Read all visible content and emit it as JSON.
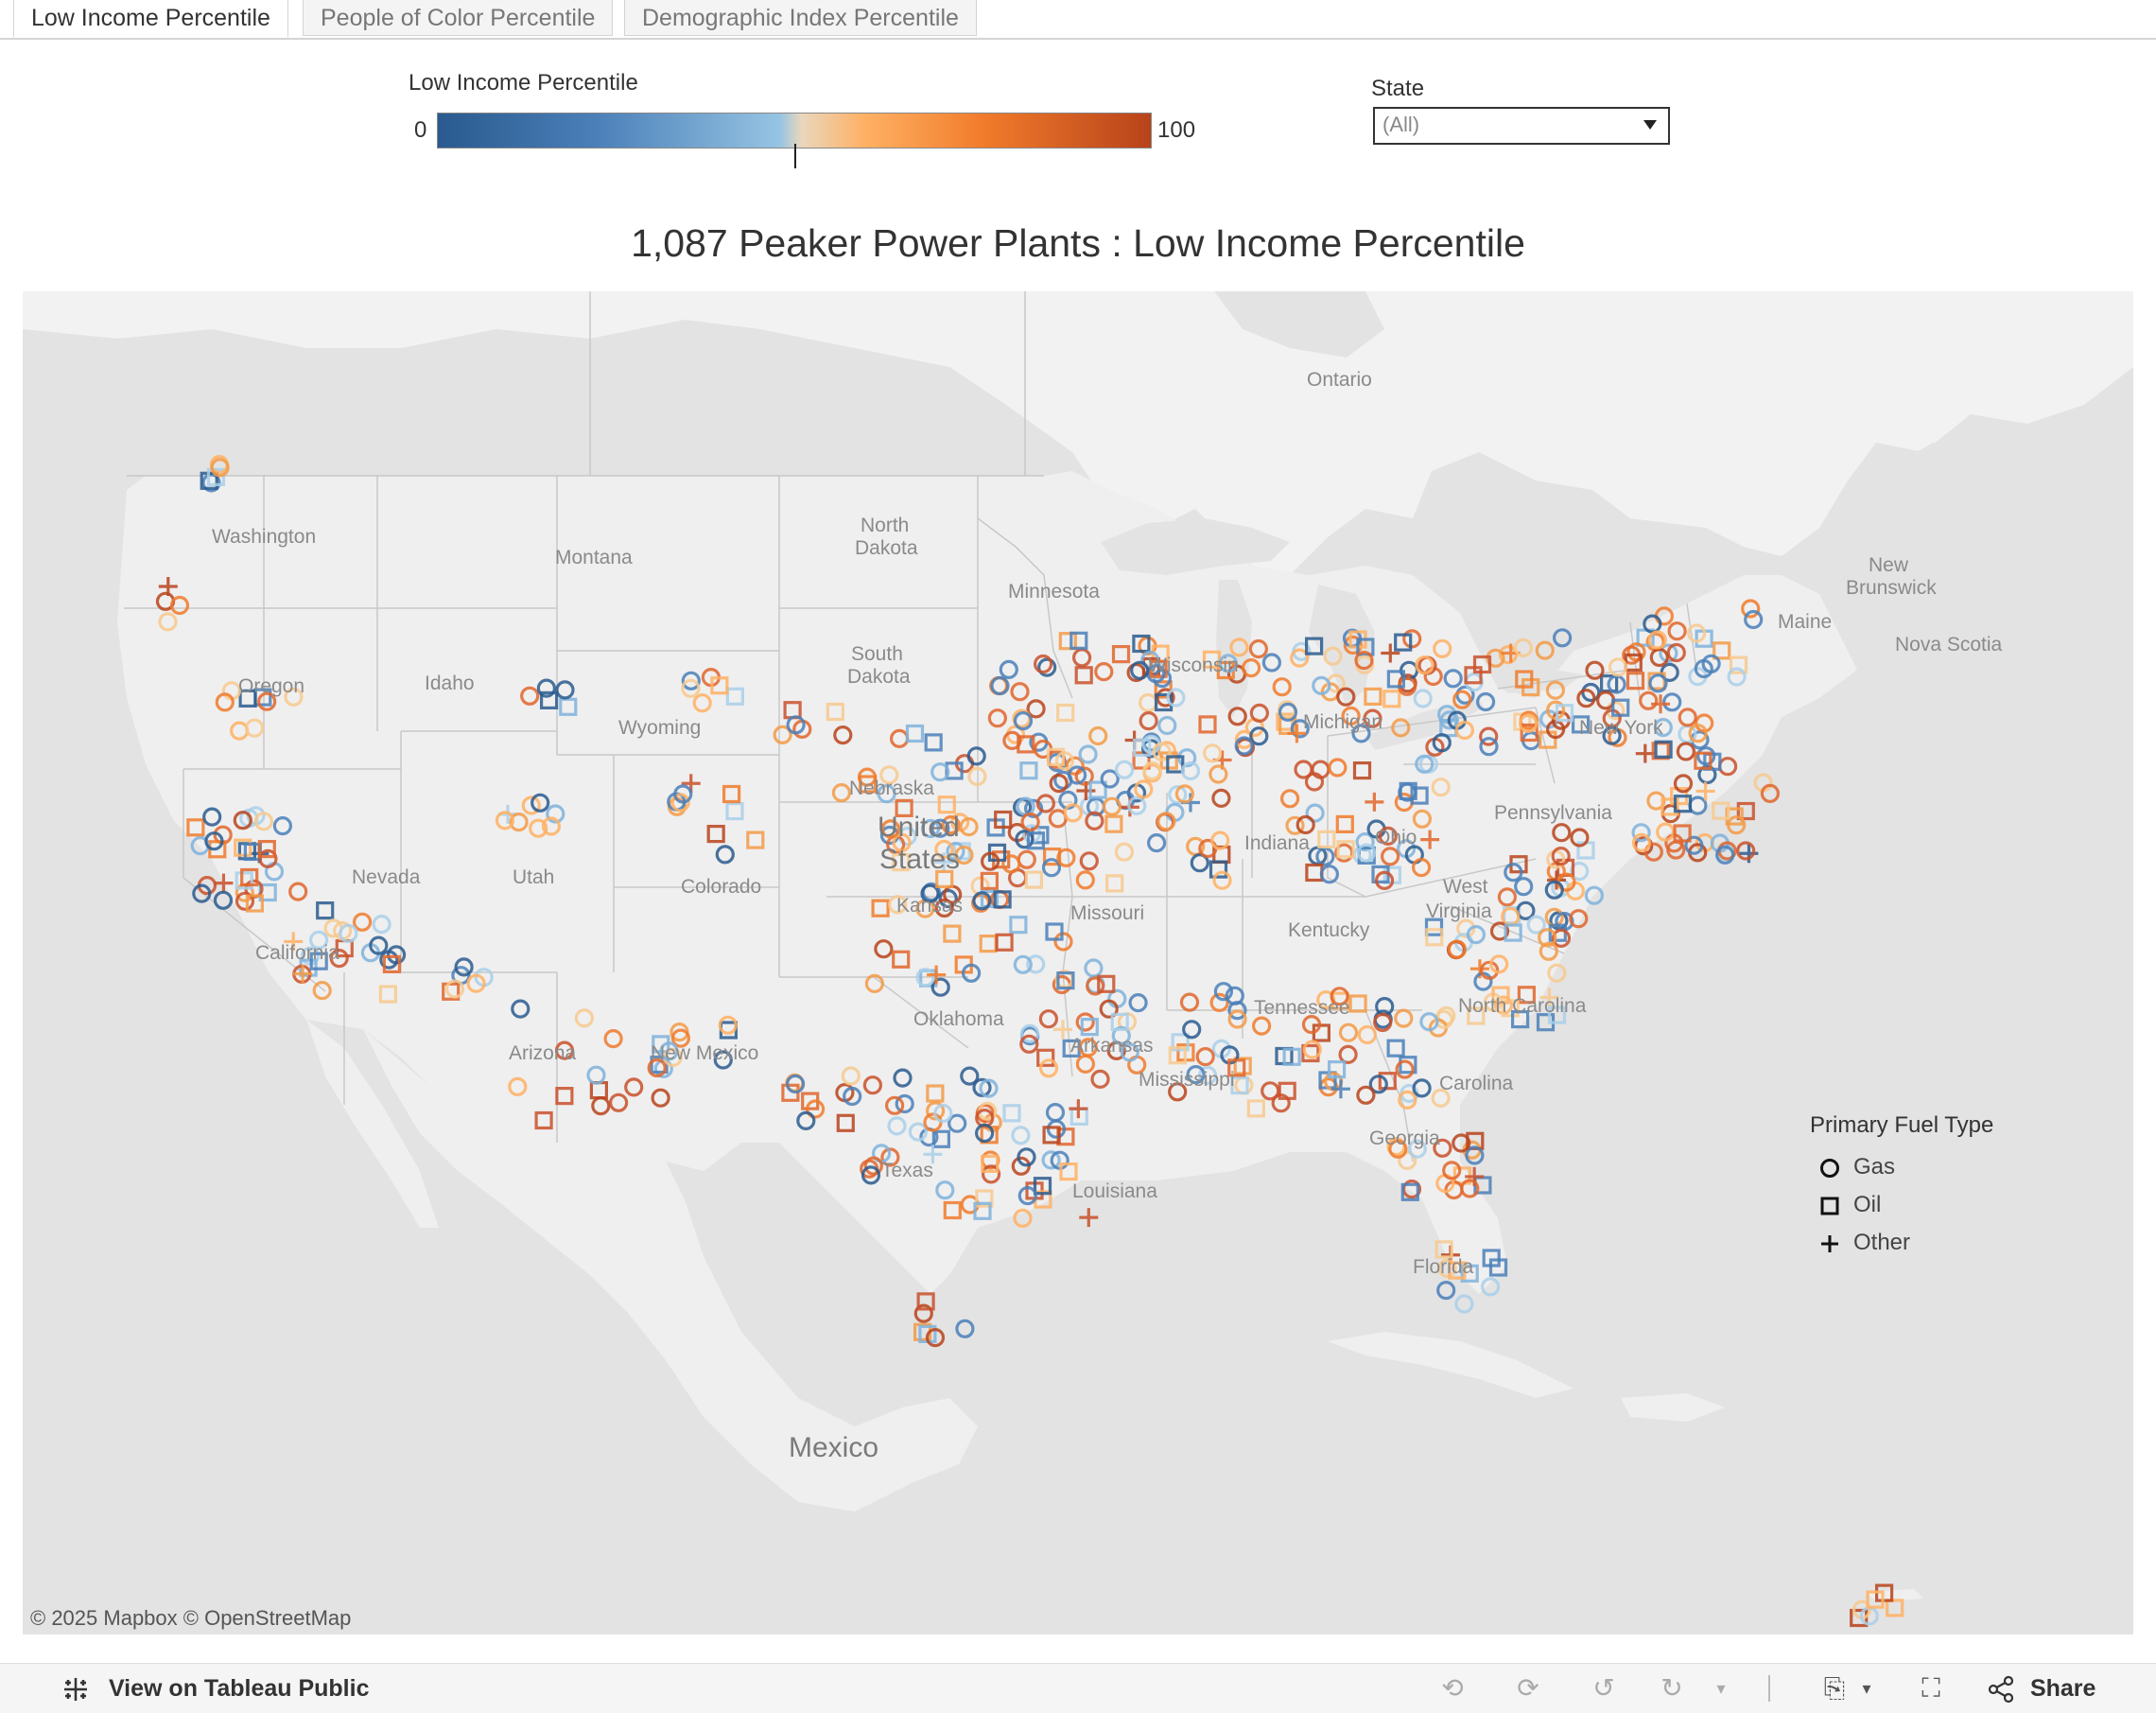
{
  "tabs": [
    {
      "label": "Low Income Percentile",
      "active": true
    },
    {
      "label": "People of Color Percentile",
      "active": false
    },
    {
      "label": "Demographic Index Percentile",
      "active": false
    }
  ],
  "color_legend": {
    "title": "Low Income Percentile",
    "min": "0",
    "max": "100",
    "colors": [
      "#2a5a8e",
      "#96c4e3",
      "#ffb063",
      "#b8431b"
    ]
  },
  "state_filter": {
    "label": "State",
    "value": "(All)"
  },
  "map": {
    "title": "1,087 Peaker Power Plants : Low Income Percentile",
    "labels": {
      "ontario": "Ontario",
      "washington": "Washington",
      "montana": "Montana",
      "north_dakota_1": "North",
      "north_dakota_2": "Dakota",
      "minnesota": "Minnesota",
      "new_brunswick_1": "New",
      "new_brunswick_2": "Brunswick",
      "maine": "Maine",
      "nova_scotia": "Nova Scotia",
      "oregon": "Oregon",
      "idaho": "Idaho",
      "south_dakota_1": "South",
      "south_dakota_2": "Dakota",
      "wisconsin": "Wisconsin",
      "michigan": "Michigan",
      "new_york": "New York",
      "wyoming": "Wyoming",
      "nebraska": "Nebraska",
      "pennsylvania": "Pennsylvania",
      "ohio": "Ohio",
      "nevada": "Nevada",
      "utah": "Utah",
      "colorado": "Colorado",
      "united_1": "United",
      "united_2": "States",
      "indiana": "Indiana",
      "west_virginia_1": "West",
      "west_virginia_2": "Virginia",
      "california": "California",
      "missouri": "Missouri",
      "kentucky": "Kentucky",
      "kansas": "Kansas",
      "tennessee": "Tennessee",
      "north_carolina": "North Carolina",
      "arizona": "Arizona",
      "new_mexico": "New Mexico",
      "oklahoma": "Oklahoma",
      "arkansas": "Arkansas",
      "mississippi": "Mississippi",
      "south_carolina": "Carolina",
      "georgia": "Georgia",
      "texas": "Texas",
      "louisiana": "Louisiana",
      "florida": "Florida",
      "mexico": "Mexico"
    },
    "attribution": "© 2025 Mapbox  © OpenStreetMap"
  },
  "shape_legend": {
    "title": "Primary Fuel Type",
    "items": [
      {
        "label": "Gas",
        "shape": "circle"
      },
      {
        "label": "Oil",
        "shape": "square"
      },
      {
        "label": "Other",
        "shape": "plus"
      }
    ]
  },
  "toolbar": {
    "view_label": "View on Tableau Public",
    "share_label": "Share",
    "icons": [
      "undo-icon",
      "redo-icon",
      "revert-icon",
      "refresh-icon",
      "download-icon",
      "fullscreen-icon",
      "share-icon"
    ]
  }
}
